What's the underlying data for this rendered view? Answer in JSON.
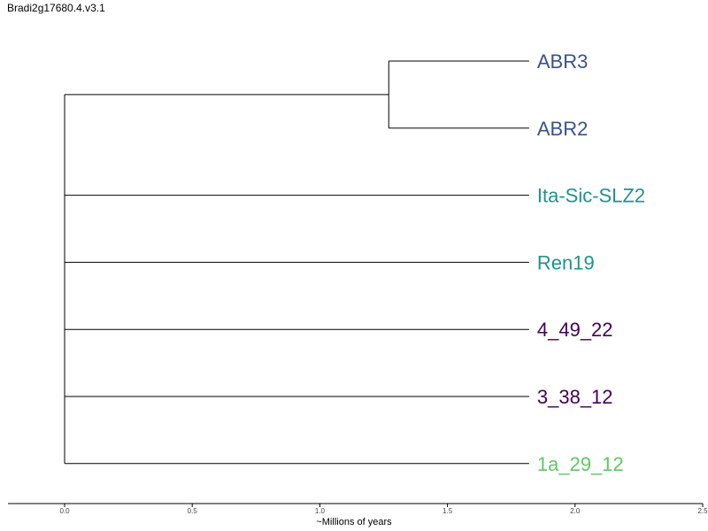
{
  "title": "Bradi2g17680.4.v3.1",
  "chart_data": {
    "type": "dendrogram",
    "xlabel": "~Millions of years",
    "xlim": [
      0,
      2.5
    ],
    "xticks": [
      "0.0",
      "0.5",
      "1.0",
      "1.5",
      "2.0",
      "2.5"
    ],
    "tick_values": [
      0.0,
      0.5,
      1.0,
      1.5,
      2.0,
      2.5
    ],
    "leaf_tip": 1.82,
    "clade_node": 1.27,
    "root_node": 0.0,
    "leaves": [
      {
        "label": "ABR3",
        "color": "#3b528b",
        "parent": "clade"
      },
      {
        "label": "ABR2",
        "color": "#3b528b",
        "parent": "clade"
      },
      {
        "label": "Ita-Sic-SLZ2",
        "color": "#21918c",
        "parent": "root"
      },
      {
        "label": "Ren19",
        "color": "#21918c",
        "parent": "root"
      },
      {
        "label": "4_49_22",
        "color": "#440154",
        "parent": "root"
      },
      {
        "label": "3_38_12",
        "color": "#440154",
        "parent": "root"
      },
      {
        "label": "1a_29_12",
        "color": "#5ec962",
        "parent": "root"
      }
    ]
  }
}
